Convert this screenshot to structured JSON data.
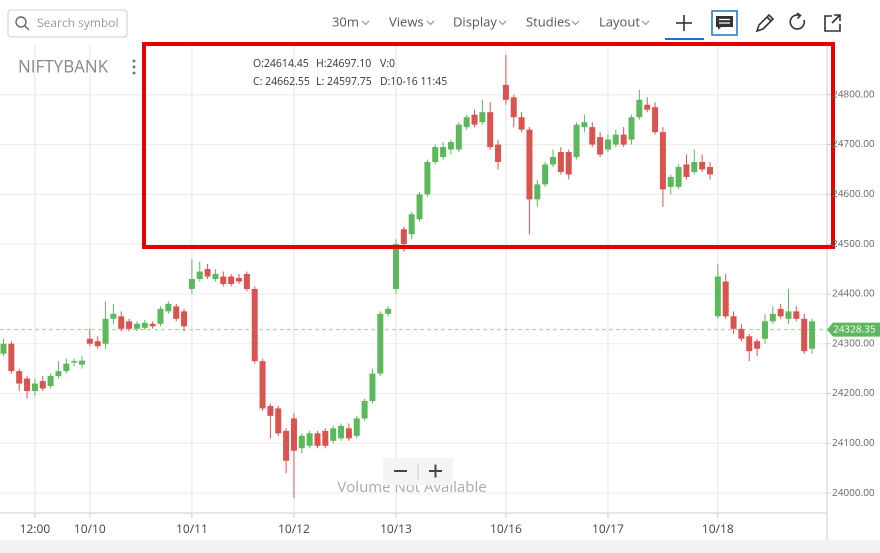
{
  "toolbar": {
    "search_placeholder": "Search symbol",
    "menus": [
      "30m",
      "Views",
      "Display",
      "Studies",
      "Layout"
    ]
  },
  "symbol": "NIFTYBANK",
  "ohlc_readout": [
    "O:24614.45",
    "H:24697.10",
    "V:0",
    "C: 24662.55",
    "L: 24597.75",
    "D:10-16 11:45"
  ],
  "volume_note": "Volume Not Available",
  "chart_data": {
    "type": "candlestick",
    "up_color": "#5cb85c",
    "down_color": "#d9534f",
    "categories": [
      null,
      null,
      null,
      null,
      "12:00",
      null,
      null,
      null,
      null,
      null,
      null,
      "10/10",
      null,
      null,
      null,
      null,
      null,
      null,
      null,
      null,
      null,
      null,
      null,
      null,
      "10/11",
      null,
      null,
      null,
      null,
      null,
      null,
      null,
      null,
      null,
      null,
      null,
      null,
      "10/12",
      null,
      null,
      null,
      null,
      null,
      null,
      null,
      null,
      null,
      null,
      null,
      null,
      "10/13",
      null,
      null,
      null,
      null,
      null,
      null,
      null,
      null,
      null,
      null,
      null,
      null,
      null,
      "10/16",
      null,
      null,
      null,
      null,
      null,
      null,
      null,
      null,
      null,
      null,
      null,
      null,
      "10/17",
      null,
      null,
      null,
      null,
      null,
      null,
      null,
      null,
      null,
      null,
      null,
      null,
      null,
      "10/18",
      null,
      null,
      null,
      null,
      null,
      null,
      null,
      null,
      null,
      null,
      null,
      null
    ],
    "ohlc": [
      [
        24280,
        24310,
        24275,
        24300
      ],
      [
        24300,
        24305,
        24240,
        24245
      ],
      [
        24245,
        24250,
        24205,
        24220
      ],
      [
        24230,
        24235,
        24190,
        24205
      ],
      [
        24205,
        24230,
        24195,
        24220
      ],
      [
        24225,
        24235,
        24205,
        24210
      ],
      [
        24215,
        24240,
        24210,
        24235
      ],
      [
        24235,
        24265,
        24230,
        24245
      ],
      [
        24245,
        24270,
        24240,
        24260
      ],
      [
        24262,
        24270,
        24255,
        24265
      ],
      [
        24258,
        24275,
        24250,
        24266
      ],
      [
        24310,
        24330,
        24295,
        24300
      ],
      [
        24305,
        24315,
        24290,
        24295
      ],
      [
        24300,
        24385,
        24290,
        24350
      ],
      [
        24350,
        24380,
        24340,
        24360
      ],
      [
        24355,
        24365,
        24325,
        24330
      ],
      [
        24345,
        24350,
        24325,
        24330
      ],
      [
        24330,
        24345,
        24325,
        24340
      ],
      [
        24332,
        24348,
        24328,
        24342
      ],
      [
        24340,
        24345,
        24330,
        24335
      ],
      [
        24340,
        24375,
        24335,
        24370
      ],
      [
        24365,
        24385,
        24360,
        24380
      ],
      [
        24375,
        24380,
        24345,
        24350
      ],
      [
        24365,
        24370,
        24325,
        24335
      ],
      [
        24410,
        24470,
        24400,
        24430
      ],
      [
        24430,
        24465,
        24425,
        24445
      ],
      [
        24450,
        24460,
        24430,
        24435
      ],
      [
        24430,
        24450,
        24425,
        24440
      ],
      [
        24435,
        24445,
        24415,
        24420
      ],
      [
        24435,
        24440,
        24415,
        24420
      ],
      [
        24432,
        24440,
        24420,
        24425
      ],
      [
        24440,
        24445,
        24405,
        24410
      ],
      [
        24410,
        24415,
        24260,
        24265
      ],
      [
        24265,
        24270,
        24165,
        24170
      ],
      [
        24175,
        24180,
        24110,
        24155
      ],
      [
        24170,
        24175,
        24115,
        24120
      ],
      [
        24125,
        24130,
        24040,
        24065
      ],
      [
        24150,
        24160,
        23990,
        24085
      ],
      [
        24090,
        24120,
        24080,
        24115
      ],
      [
        24095,
        24125,
        24090,
        24120
      ],
      [
        24120,
        24125,
        24090,
        24095
      ],
      [
        24125,
        24130,
        24090,
        24095
      ],
      [
        24105,
        24135,
        24100,
        24130
      ],
      [
        24110,
        24140,
        24105,
        24135
      ],
      [
        24130,
        24140,
        24105,
        24110
      ],
      [
        24115,
        24155,
        24110,
        24150
      ],
      [
        24150,
        24190,
        24145,
        24185
      ],
      [
        24185,
        24250,
        24180,
        24240
      ],
      [
        24240,
        24365,
        24235,
        24360
      ],
      [
        24360,
        24375,
        24355,
        24370
      ],
      [
        24410,
        24510,
        24400,
        24500
      ],
      [
        24530,
        24535,
        24485,
        24500
      ],
      [
        24520,
        24565,
        24510,
        24560
      ],
      [
        24550,
        24605,
        24545,
        24600
      ],
      [
        24600,
        24670,
        24595,
        24665
      ],
      [
        24665,
        24700,
        24660,
        24695
      ],
      [
        24675,
        24705,
        24670,
        24695
      ],
      [
        24690,
        24710,
        24680,
        24705
      ],
      [
        24690,
        24745,
        24685,
        24740
      ],
      [
        24735,
        24760,
        24730,
        24755
      ],
      [
        24760,
        24770,
        24735,
        24740
      ],
      [
        24745,
        24790,
        24740,
        24765
      ],
      [
        24765,
        24785,
        24690,
        24695
      ],
      [
        24700,
        24710,
        24650,
        24665
      ],
      [
        24820,
        24880,
        24780,
        24790
      ],
      [
        24795,
        24800,
        24735,
        24755
      ],
      [
        24755,
        24765,
        24725,
        24730
      ],
      [
        24730,
        24735,
        24520,
        24590
      ],
      [
        24590,
        24630,
        24575,
        24620
      ],
      [
        24620,
        24665,
        24615,
        24660
      ],
      [
        24660,
        24690,
        24655,
        24675
      ],
      [
        24685,
        24695,
        24640,
        24645
      ],
      [
        24685,
        24690,
        24630,
        24640
      ],
      [
        24675,
        24745,
        24670,
        24740
      ],
      [
        24735,
        24760,
        24725,
        24745
      ],
      [
        24735,
        24745,
        24695,
        24700
      ],
      [
        24715,
        24725,
        24675,
        24680
      ],
      [
        24690,
        24720,
        24685,
        24710
      ],
      [
        24700,
        24730,
        24695,
        24720
      ],
      [
        24720,
        24735,
        24695,
        24700
      ],
      [
        24710,
        24760,
        24700,
        24755
      ],
      [
        24755,
        24810,
        24750,
        24790
      ],
      [
        24780,
        24795,
        24765,
        24770
      ],
      [
        24775,
        24785,
        24720,
        24725
      ],
      [
        24725,
        24735,
        24575,
        24610
      ],
      [
        24615,
        24640,
        24600,
        24635
      ],
      [
        24615,
        24660,
        24610,
        24655
      ],
      [
        24660,
        24680,
        24630,
        24635
      ],
      [
        24645,
        24690,
        24640,
        24665
      ],
      [
        24665,
        24680,
        24645,
        24650
      ],
      [
        24655,
        24665,
        24630,
        24640
      ],
      [
        24355,
        24460,
        24350,
        24435
      ],
      [
        24425,
        24440,
        24350,
        24355
      ],
      [
        24355,
        24365,
        24320,
        24330
      ],
      [
        24330,
        24340,
        24305,
        24310
      ],
      [
        24315,
        24320,
        24265,
        24285
      ],
      [
        24305,
        24310,
        24275,
        24290
      ],
      [
        24310,
        24360,
        24300,
        24345
      ],
      [
        24345,
        24375,
        24340,
        24360
      ],
      [
        24370,
        24380,
        24350,
        24355
      ],
      [
        24350,
        24410,
        24340,
        24365
      ],
      [
        24365,
        24375,
        24345,
        24350
      ],
      [
        24350,
        24360,
        24280,
        24285
      ],
      [
        24290,
        24350,
        24280,
        24345
      ]
    ],
    "ylim": [
      23960,
      24900
    ],
    "yticks": [
      {
        "value": 24000,
        "label": "24000.00"
      },
      {
        "value": 24100,
        "label": "24100.00"
      },
      {
        "value": 24200,
        "label": "24200.00"
      },
      {
        "value": 24300,
        "label": "24300.00"
      },
      {
        "value": 24400,
        "label": "24400.00"
      },
      {
        "value": 24500,
        "label": "24500.00"
      },
      {
        "value": 24600,
        "label": "24600.00"
      },
      {
        "value": 24700,
        "label": "24700.00"
      },
      {
        "value": 24800,
        "label": "24800.00"
      }
    ],
    "grid": true,
    "last_price": 24328.35,
    "last_price_color": "#5cb85c"
  }
}
